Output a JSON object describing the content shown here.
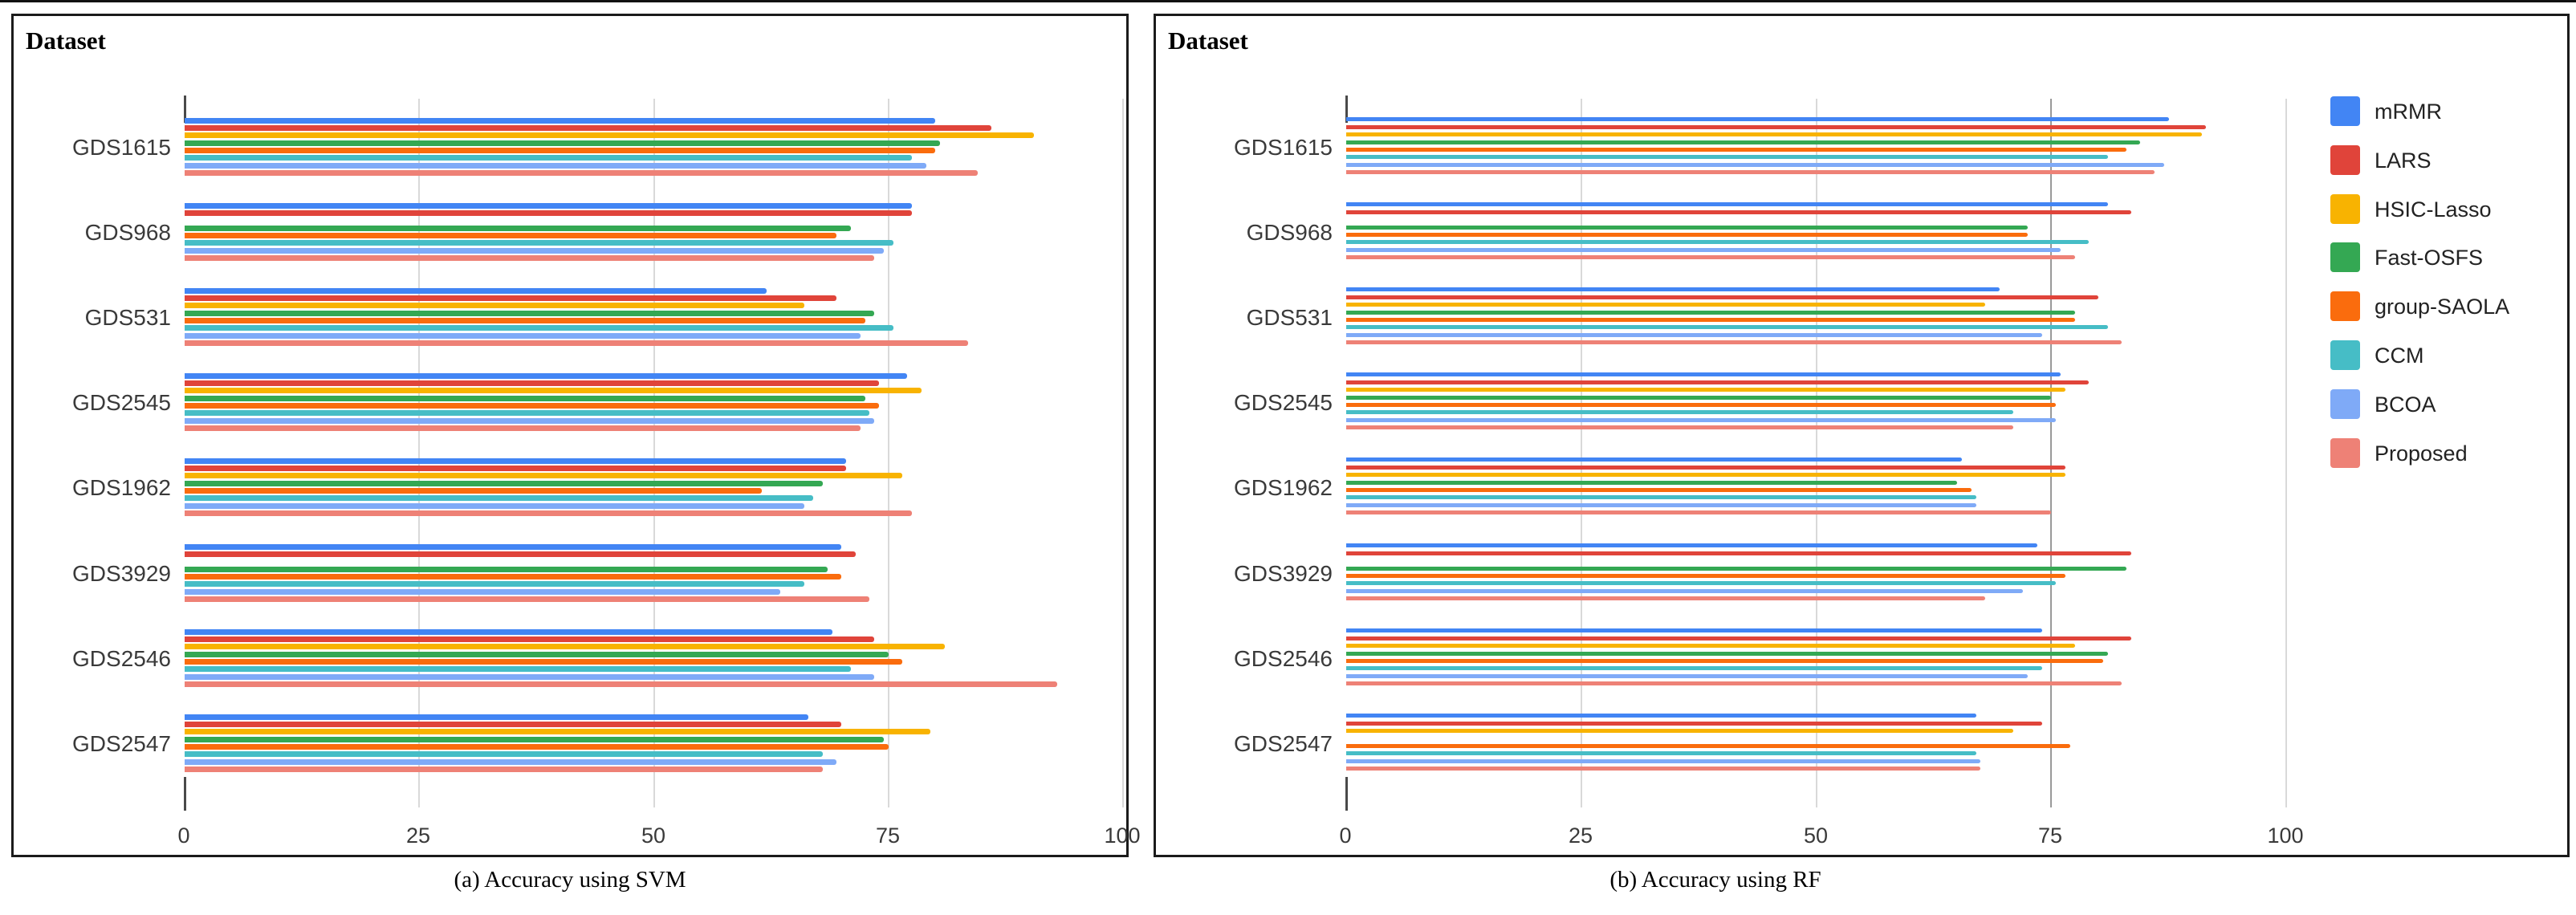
{
  "panel_a": {
    "header": "Dataset",
    "caption": "(a) Accuracy using SVM"
  },
  "panel_b": {
    "header": "Dataset",
    "caption": "(b) Accuracy using RF"
  },
  "legend": {
    "position": "right",
    "items": [
      {
        "label": "mRMR",
        "color": "#4285f4"
      },
      {
        "label": "LARS",
        "color": "#e0443a"
      },
      {
        "label": "HSIC-Lasso",
        "color": "#f8b301"
      },
      {
        "label": "Fast-OSFS",
        "color": "#34a853"
      },
      {
        "label": "group-SAOLA",
        "color": "#fa6c0d"
      },
      {
        "label": "CCM",
        "color": "#46bdc6"
      },
      {
        "label": "BCOA",
        "color": "#7faaf7"
      },
      {
        "label": "Proposed",
        "color": "#ee8176"
      }
    ]
  },
  "chart_data": [
    {
      "type": "bar",
      "orientation": "horizontal",
      "title": "(a) Accuracy using SVM",
      "axis_title": "Dataset",
      "categories": [
        "GDS1615",
        "GDS968",
        "GDS531",
        "GDS2545",
        "GDS1962",
        "GDS3929",
        "GDS2546",
        "GDS2547"
      ],
      "xticks": [
        0,
        25,
        50,
        75,
        100
      ],
      "xlim": [
        0,
        100
      ],
      "grid": true,
      "legend_position": "none",
      "series": [
        {
          "name": "mRMR",
          "color": "#4285f4",
          "values": [
            80,
            77.5,
            62,
            77,
            70.5,
            70,
            69,
            66.5
          ]
        },
        {
          "name": "LARS",
          "color": "#e0443a",
          "values": [
            86,
            77.5,
            69.5,
            74,
            70.5,
            71.5,
            73.5,
            70
          ]
        },
        {
          "name": "HSIC-Lasso",
          "color": "#f8b301",
          "values": [
            90.5,
            null,
            66,
            78.5,
            76.5,
            null,
            81,
            79.5
          ]
        },
        {
          "name": "Fast-OSFS",
          "color": "#34a853",
          "values": [
            80.5,
            71,
            73.5,
            72.5,
            68,
            68.5,
            75,
            74.5
          ]
        },
        {
          "name": "group-SAOLA",
          "color": "#fa6c0d",
          "values": [
            80,
            69.5,
            72.5,
            74,
            61.5,
            70,
            76.5,
            75
          ]
        },
        {
          "name": "CCM",
          "color": "#46bdc6",
          "values": [
            77.5,
            75.5,
            75.5,
            73,
            67,
            66,
            71,
            68
          ]
        },
        {
          "name": "BCOA",
          "color": "#7faaf7",
          "values": [
            79,
            74.5,
            72,
            73.5,
            66,
            63.5,
            73.5,
            69.5
          ]
        },
        {
          "name": "Proposed",
          "color": "#ee8176",
          "values": [
            84.5,
            73.5,
            83.5,
            72,
            77.5,
            73,
            93,
            68
          ]
        }
      ]
    },
    {
      "type": "bar",
      "orientation": "horizontal",
      "title": "(b) Accuracy using RF",
      "axis_title": "Dataset",
      "categories": [
        "GDS1615",
        "GDS968",
        "GDS531",
        "GDS2545",
        "GDS1962",
        "GDS3929",
        "GDS2546",
        "GDS2547"
      ],
      "xticks": [
        0,
        25,
        50,
        75,
        100
      ],
      "xlim": [
        0,
        100
      ],
      "grid": true,
      "legend_position": "right",
      "series": [
        {
          "name": "mRMR",
          "color": "#4285f4",
          "values": [
            87.5,
            81,
            69.5,
            76,
            65.5,
            73.5,
            74,
            67
          ]
        },
        {
          "name": "LARS",
          "color": "#e0443a",
          "values": [
            91.5,
            83.5,
            80,
            79,
            76.5,
            83.5,
            83.5,
            74
          ]
        },
        {
          "name": "HSIC-Lasso",
          "color": "#f8b301",
          "values": [
            91,
            null,
            68,
            76.5,
            76.5,
            null,
            77.5,
            71
          ]
        },
        {
          "name": "Fast-OSFS",
          "color": "#34a853",
          "values": [
            84.5,
            72.5,
            77.5,
            75,
            65,
            83,
            81,
            null
          ]
        },
        {
          "name": "group-SAOLA",
          "color": "#fa6c0d",
          "values": [
            83,
            72.5,
            77.5,
            75.5,
            66.5,
            76.5,
            80.5,
            77
          ]
        },
        {
          "name": "CCM",
          "color": "#46bdc6",
          "values": [
            81,
            79,
            81,
            71,
            67,
            75.5,
            74,
            67
          ]
        },
        {
          "name": "BCOA",
          "color": "#7faaf7",
          "values": [
            87,
            76,
            74,
            75.5,
            67,
            72,
            72.5,
            67.5
          ]
        },
        {
          "name": "Proposed",
          "color": "#ee8176",
          "values": [
            86,
            77.5,
            82.5,
            71,
            75,
            68,
            82.5,
            67.5
          ]
        }
      ]
    }
  ]
}
